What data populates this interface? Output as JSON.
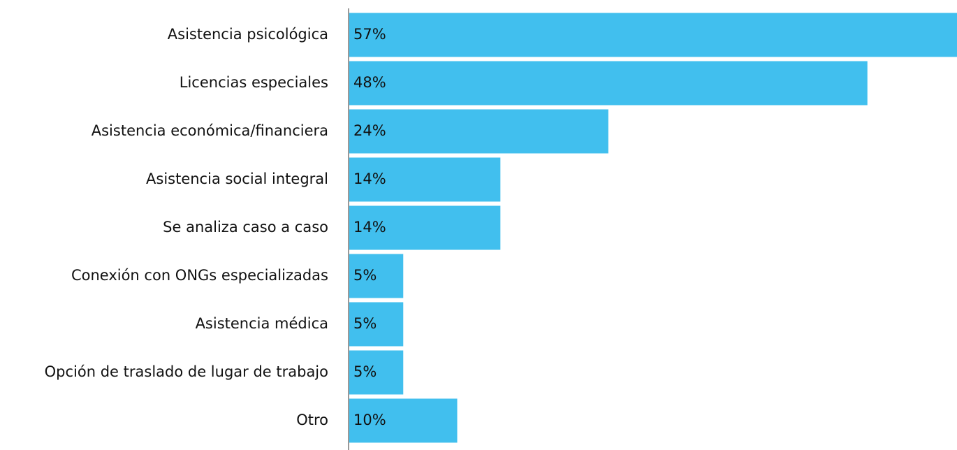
{
  "chart_data": {
    "type": "bar",
    "orientation": "horizontal",
    "categories": [
      "Asistencia psicológica",
      "Licencias especiales",
      "Asistencia económica/financiera",
      "Asistencia social integral",
      "Se analiza caso a caso",
      "Conexión con ONGs especializadas",
      "Asistencia médica",
      "Opción de traslado de lugar de trabajo",
      "Otro"
    ],
    "values": [
      57,
      48,
      24,
      14,
      14,
      5,
      5,
      5,
      10
    ],
    "value_labels": [
      "57%",
      "48%",
      "24%",
      "14%",
      "14%",
      "5%",
      "5%",
      "5%",
      "10%"
    ],
    "color": "#41bfee",
    "xlim": [
      0,
      56.3
    ]
  }
}
